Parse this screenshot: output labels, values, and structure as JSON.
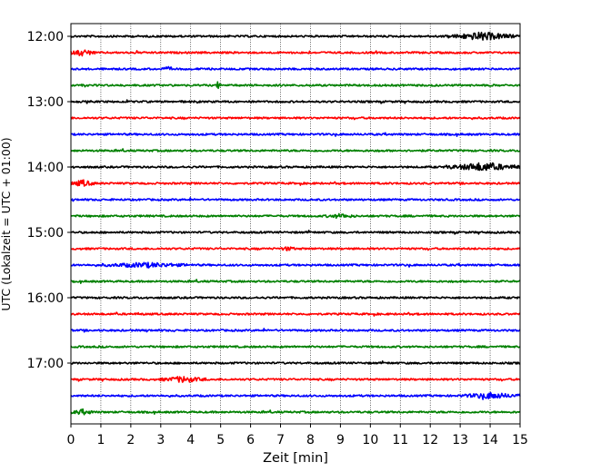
{
  "chart_data": {
    "type": "line",
    "title": "",
    "xlabel": "Zeit  [min]",
    "ylabel": "UTC (Lokalzeit = UTC + 01:00)",
    "xlim": [
      0,
      15
    ],
    "x_ticks": [
      "0",
      "1",
      "2",
      "3",
      "4",
      "5",
      "6",
      "7",
      "8",
      "9",
      "10",
      "11",
      "12",
      "13",
      "14",
      "15"
    ],
    "y_ticks": [
      {
        "label": "12:00",
        "trace_index": 0
      },
      {
        "label": "13:00",
        "trace_index": 4
      },
      {
        "label": "14:00",
        "trace_index": 8
      },
      {
        "label": "15:00",
        "trace_index": 12
      },
      {
        "label": "16:00",
        "trace_index": 16
      },
      {
        "label": "17:00",
        "trace_index": 20
      }
    ],
    "trace_interval_min": 15,
    "trace_count": 24,
    "trace_colors": [
      "#000000",
      "#ff0000",
      "#0000ff",
      "#008000"
    ],
    "grid": {
      "vertical_dotted": true,
      "horizontal": false
    },
    "events": [
      {
        "trace": 0,
        "start": 12.5,
        "end": 15.0,
        "amplitude": 0.6
      },
      {
        "trace": 1,
        "start": 0.0,
        "end": 0.8,
        "amplitude": 0.5
      },
      {
        "trace": 2,
        "start": 3.0,
        "end": 3.5,
        "amplitude": 0.25
      },
      {
        "trace": 3,
        "start": 4.85,
        "end": 5.0,
        "amplitude": 0.7
      },
      {
        "trace": 8,
        "start": 12.5,
        "end": 15.0,
        "amplitude": 0.65
      },
      {
        "trace": 9,
        "start": 0.0,
        "end": 0.8,
        "amplitude": 0.5
      },
      {
        "trace": 11,
        "start": 8.5,
        "end": 9.5,
        "amplitude": 0.3
      },
      {
        "trace": 13,
        "start": 7.0,
        "end": 7.5,
        "amplitude": 0.3
      },
      {
        "trace": 14,
        "start": 1.0,
        "end": 4.0,
        "amplitude": 0.35
      },
      {
        "trace": 21,
        "start": 3.0,
        "end": 4.5,
        "amplitude": 0.45
      },
      {
        "trace": 22,
        "start": 13.0,
        "end": 15.0,
        "amplitude": 0.45
      },
      {
        "trace": 23,
        "start": 0.0,
        "end": 0.8,
        "amplitude": 0.35
      }
    ]
  }
}
